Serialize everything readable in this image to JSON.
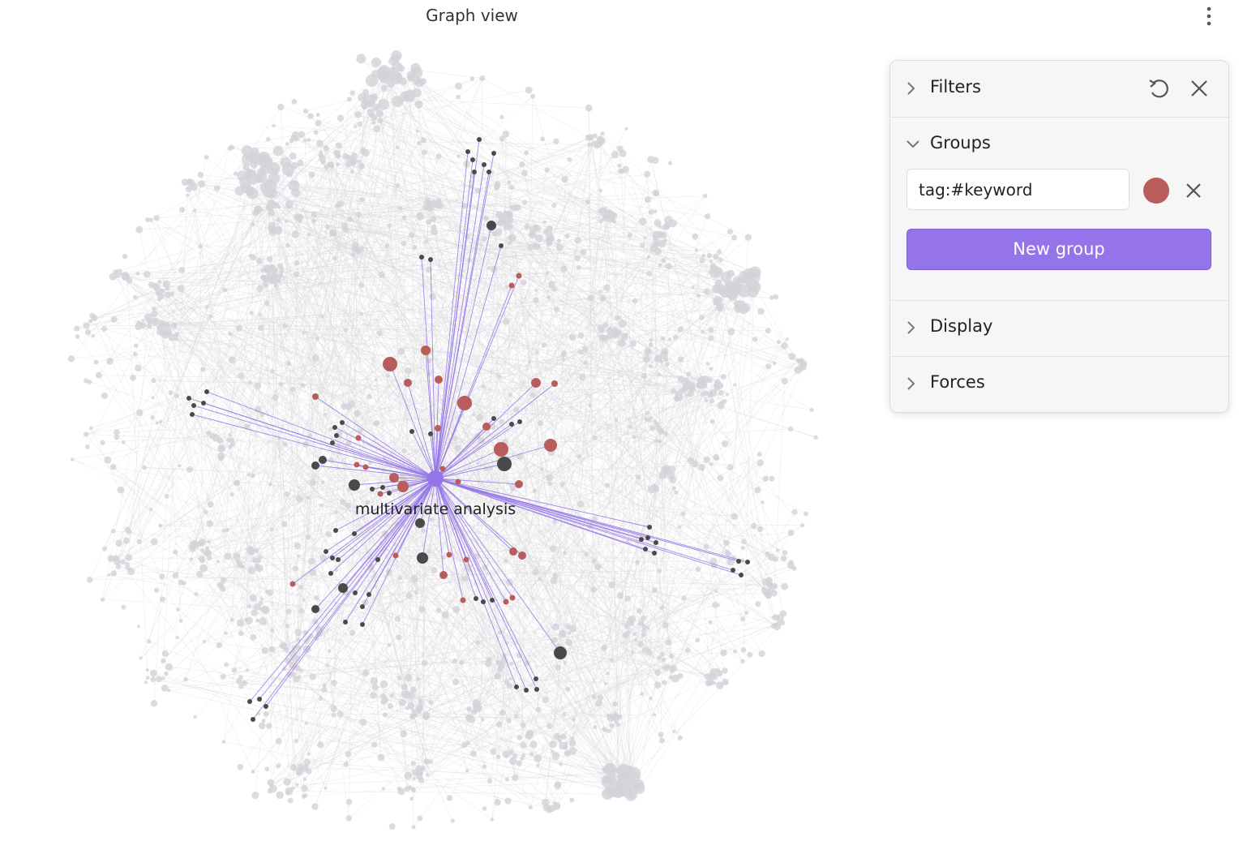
{
  "header": {
    "title": "Graph view"
  },
  "graph": {
    "focused_node": "multivariate analysis"
  },
  "panel": {
    "filters": {
      "title": "Filters"
    },
    "groups": {
      "title": "Groups",
      "items": [
        {
          "query": "tag:#keyword",
          "color": "#b85c5c"
        }
      ],
      "new_button": "New group"
    },
    "display": {
      "title": "Display"
    },
    "forces": {
      "title": "Forces"
    }
  }
}
